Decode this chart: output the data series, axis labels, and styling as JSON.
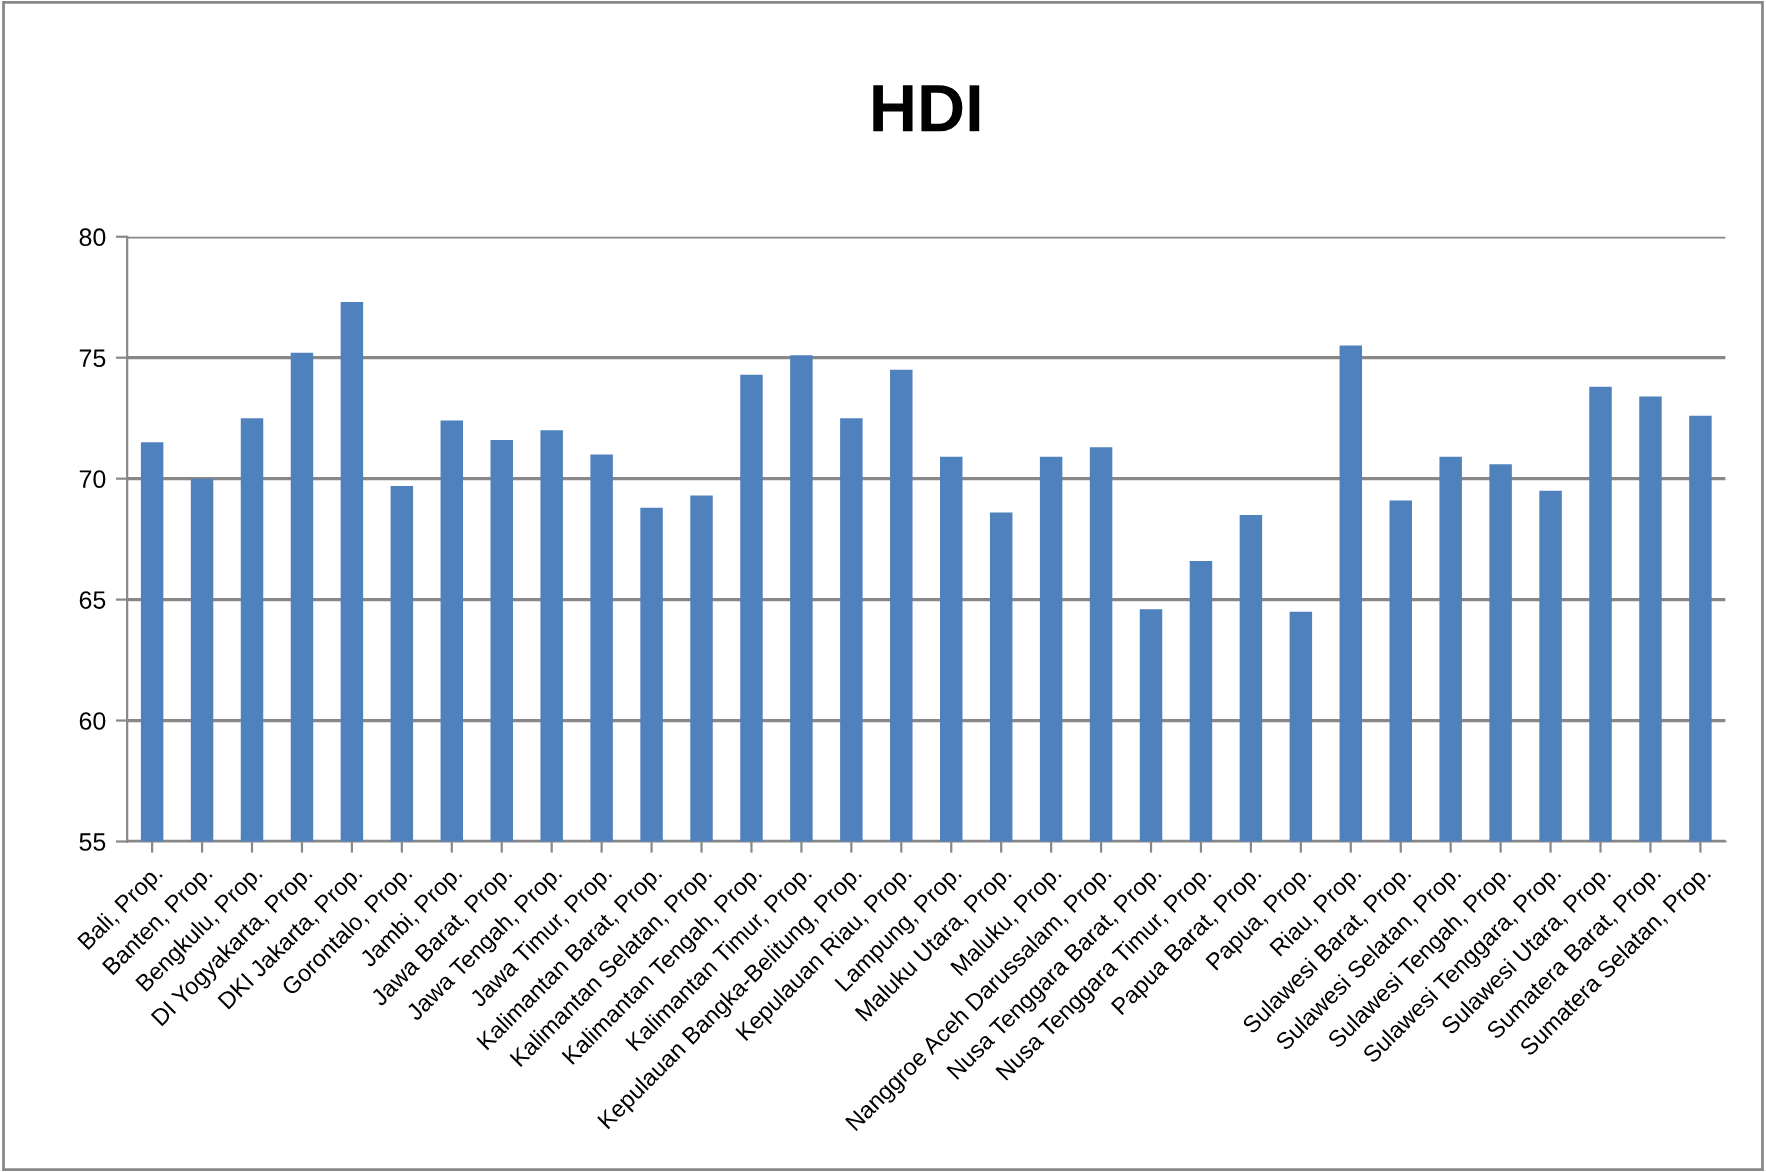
{
  "chart_data": {
    "type": "bar",
    "title": "HDI",
    "categories": [
      "Bali, Prop.",
      "Banten, Prop.",
      "Bengkulu, Prop.",
      "DI Yogyakarta, Prop.",
      "DKI Jakarta, Prop.",
      "Gorontalo, Prop.",
      "Jambi, Prop.",
      "Jawa Barat, Prop.",
      "Jawa Tengah, Prop.",
      "Jawa Timur, Prop.",
      "Kalimantan Barat, Prop.",
      "Kalimantan Selatan, Prop.",
      "Kalimantan Tengah, Prop.",
      "Kalimantan Timur, Prop.",
      "Kepulauan Bangka-Belitung, Prop.",
      "Kepulauan Riau, Prop.",
      "Lampung, Prop.",
      "Maluku Utara, Prop.",
      "Maluku, Prop.",
      "Nanggroe Aceh Darussalam, Prop.",
      "Nusa Tenggara Barat, Prop.",
      "Nusa Tenggara Timur, Prop.",
      "Papua Barat, Prop.",
      "Papua, Prop.",
      "Riau, Prop.",
      "Sulawesi Barat, Prop.",
      "Sulawesi Selatan, Prop.",
      "Sulawesi Tengah, Prop.",
      "Sulawesi Tenggara, Prop.",
      "Sulawesi Utara, Prop.",
      "Sumatera Barat, Prop.",
      "Sumatera Selatan, Prop."
    ],
    "values": [
      71.5,
      70.0,
      72.5,
      75.2,
      77.3,
      69.7,
      72.4,
      71.6,
      72.0,
      71.0,
      68.8,
      69.3,
      74.3,
      75.1,
      72.5,
      74.5,
      70.9,
      68.6,
      70.9,
      71.3,
      64.6,
      66.6,
      68.5,
      64.5,
      75.5,
      69.1,
      70.9,
      70.6,
      69.5,
      73.8,
      73.4,
      72.6
    ],
    "color": "#4f81bd",
    "ylim": [
      55,
      80
    ],
    "yticks": [
      55,
      60,
      65,
      70,
      75,
      80
    ],
    "grid": "y",
    "legend": false
  }
}
